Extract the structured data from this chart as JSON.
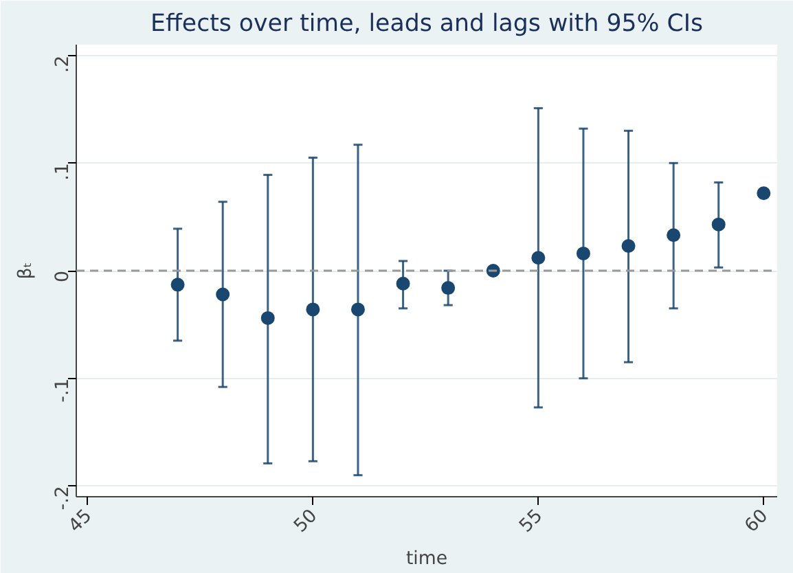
{
  "chart_data": {
    "type": "scatter",
    "title": "Effects over time, leads and lags with 95% CIs",
    "xlabel": "time",
    "ylabel": "βₜ",
    "x": [
      47,
      48,
      49,
      50,
      51,
      52,
      53,
      54,
      55,
      56,
      57,
      58,
      59,
      60
    ],
    "series": [
      {
        "color": "#1a476f",
        "values": [
          -0.013,
          -0.022,
          -0.044,
          -0.036,
          -0.036,
          -0.012,
          -0.016,
          0,
          0.012,
          0.016,
          0.023,
          0.033,
          0.043,
          0.072
        ],
        "errors": [
          [
            -0.065,
            0.039
          ],
          [
            -0.108,
            0.064
          ],
          [
            -0.179,
            0.089
          ],
          [
            -0.177,
            0.105
          ],
          [
            -0.19,
            0.117
          ],
          [
            -0.035,
            0.009
          ],
          [
            -0.032,
            0
          ],
          null,
          [
            -0.127,
            0.151
          ],
          [
            -0.1,
            0.132
          ],
          [
            -0.085,
            0.13
          ],
          [
            -0.035,
            0.1
          ],
          [
            0.003,
            0.082
          ],
          null
        ]
      }
    ],
    "xlim": [
      44.75,
      60.3
    ],
    "ylim": [
      -0.21,
      0.21
    ],
    "xticks": [
      45,
      50,
      55,
      60
    ],
    "yticks": [
      {
        "value": -0.2,
        "label": "-.2"
      },
      {
        "value": -0.1,
        "label": "-.1"
      },
      0,
      {
        "value": 0.1,
        "label": ".1"
      },
      {
        "value": 0.2,
        "label": ".2"
      }
    ],
    "ref_lines": [
      {
        "axis": "y",
        "value": 0,
        "color": "#999999",
        "line_style": "dashed"
      }
    ],
    "grid": "y",
    "marker": "circle"
  }
}
